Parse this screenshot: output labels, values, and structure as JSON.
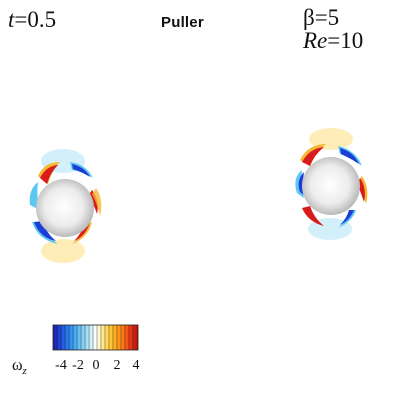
{
  "header": {
    "time_symbol": "t",
    "time_value": "=0.5",
    "mode_label": "Puller",
    "beta_symbol": "β",
    "beta_value": "=5",
    "re_symbol": "Re",
    "re_value": "=10"
  },
  "colorbar": {
    "symbol": "ω",
    "subscript": "z",
    "ticks": [
      "-4",
      "-2",
      "0",
      "2",
      "4"
    ],
    "range": [
      -5,
      5
    ],
    "colors": [
      "#1a1aa6",
      "#2453e0",
      "#2f8df2",
      "#61bff2",
      "#a6e0f7",
      "#ffffff",
      "#ffe680",
      "#ffbf26",
      "#ff8a1a",
      "#f2401a",
      "#b30d0d"
    ]
  },
  "colors": {
    "sphere_light": "#ffffff",
    "sphere_dark": "#8c8c8c",
    "positive": "#d81b1b",
    "negative": "#1c3ed6",
    "warm_mid": "#f7b733",
    "cool_mid": "#5cc7f0"
  }
}
